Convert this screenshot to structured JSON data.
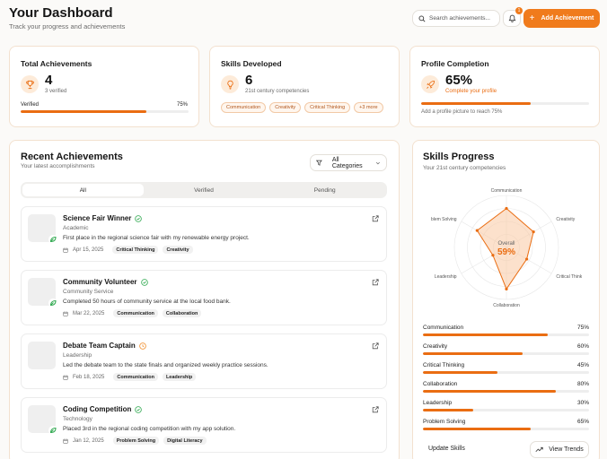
{
  "header": {
    "title": "Your Dashboard",
    "subtitle": "Track your progress and achievements",
    "search_placeholder": "Search achievements...",
    "notification_count": "1",
    "add_button": "Add Achievement"
  },
  "stats": {
    "total": {
      "title": "Total Achievements",
      "value": "4",
      "sub": "3 verified",
      "bar_label": "Verified",
      "bar_pct_label": "75%",
      "bar_pct": 75
    },
    "skills": {
      "title": "Skills Developed",
      "value": "6",
      "sub": "21st century competencies",
      "chips": [
        "Communication",
        "Creativity",
        "Critical Thinking",
        "+3 more"
      ]
    },
    "profile": {
      "title": "Profile Completion",
      "value": "65%",
      "sub": "Complete your profile",
      "hint": "Add a profile picture to reach 75%",
      "pct": 65
    }
  },
  "recent": {
    "title": "Recent Achievements",
    "subtitle": "Your latest accomplishments",
    "filter": "All Categories",
    "tabs": [
      "All",
      "Verified",
      "Pending"
    ],
    "items": [
      {
        "title": "Science Fair Winner",
        "category": "Academic",
        "desc": "First place in the regional science fair with my renewable energy project.",
        "date": "Apr 15, 2025",
        "tags": [
          "Critical Thinking",
          "Creativity"
        ],
        "status": "verified"
      },
      {
        "title": "Community Volunteer",
        "category": "Community Service",
        "desc": "Completed 50 hours of community service at the local food bank.",
        "date": "Mar 22, 2025",
        "tags": [
          "Communication",
          "Collaboration"
        ],
        "status": "verified"
      },
      {
        "title": "Debate Team Captain",
        "category": "Leadership",
        "desc": "Led the debate team to the state finals and organized weekly practice sessions.",
        "date": "Feb 18, 2025",
        "tags": [
          "Communication",
          "Leadership"
        ],
        "status": "pending"
      },
      {
        "title": "Coding Competition",
        "category": "Technology",
        "desc": "Placed 3rd in the regional coding competition with my app solution.",
        "date": "Jan 12, 2025",
        "tags": [
          "Problem Solving",
          "Digital Literacy"
        ],
        "status": "verified"
      }
    ]
  },
  "skills_progress": {
    "title": "Skills Progress",
    "subtitle": "Your 21st century competencies",
    "overall_label": "Overall",
    "overall_value": "59%",
    "radar_labels": [
      "Communication",
      "Creativity",
      "Critical Thinki",
      "Collaboration",
      "Leadership",
      "roblem Solving"
    ],
    "skills": [
      {
        "name": "Communication",
        "pct": 75,
        "label": "75%"
      },
      {
        "name": "Creativity",
        "pct": 60,
        "label": "60%"
      },
      {
        "name": "Critical Thinking",
        "pct": 45,
        "label": "45%"
      },
      {
        "name": "Collaboration",
        "pct": 80,
        "label": "80%"
      },
      {
        "name": "Leadership",
        "pct": 30,
        "label": "30%"
      },
      {
        "name": "Problem Solving",
        "pct": 65,
        "label": "65%"
      }
    ],
    "update_button": "Update Skills",
    "trends_button": "View Trends"
  },
  "colors": {
    "accent": "#f07b1c",
    "accent_light": "#fdebd9",
    "verified": "#2fa84f",
    "pending": "#f08a24"
  }
}
